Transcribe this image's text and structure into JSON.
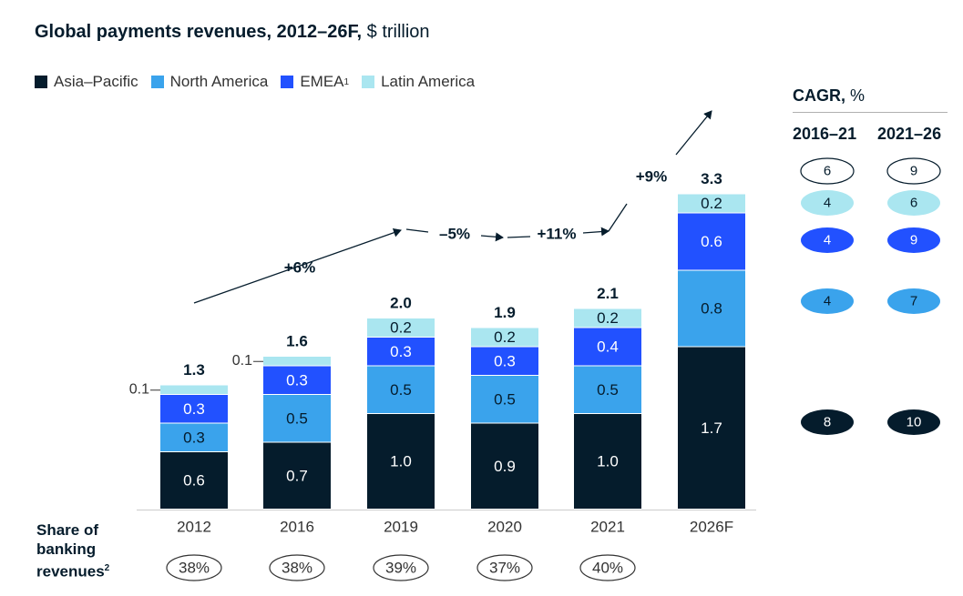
{
  "chart_data": {
    "type": "bar",
    "title": "Global payments revenues, 2012–26F,",
    "unit": "$ trillion",
    "categories": [
      "2012",
      "2016",
      "2019",
      "2020",
      "2021",
      "2026F"
    ],
    "series": [
      {
        "name": "Asia–Pacific",
        "color": "#051c2c",
        "values": [
          0.6,
          0.7,
          1.0,
          0.9,
          1.0,
          1.7
        ]
      },
      {
        "name": "North America",
        "color": "#3aa3ec",
        "values": [
          0.3,
          0.5,
          0.5,
          0.5,
          0.5,
          0.8
        ]
      },
      {
        "name": "EMEA",
        "color": "#2251ff",
        "values": [
          0.3,
          0.3,
          0.3,
          0.3,
          0.4,
          0.6
        ]
      },
      {
        "name": "Latin America",
        "color": "#aae6f0",
        "values": [
          0.1,
          0.1,
          0.2,
          0.2,
          0.2,
          0.2
        ]
      }
    ],
    "data_labels": [
      [
        "0.6",
        "0.3",
        "0.3",
        "0.1"
      ],
      [
        "0.7",
        "0.5",
        "0.3",
        "0.1"
      ],
      [
        "1.0",
        "0.5",
        "0.3",
        "0.2"
      ],
      [
        "0.9",
        "0.5",
        "0.3",
        "0.2"
      ],
      [
        "1.0",
        "0.5",
        "0.4",
        "0.2"
      ],
      [
        "1.7",
        "0.8",
        "0.6",
        "0.2"
      ]
    ],
    "totals": [
      "1.3",
      "1.6",
      "2.0",
      "1.9",
      "2.1",
      "3.3"
    ],
    "growth_labels": [
      "+6%",
      "–5%",
      "+11%",
      "+9%"
    ],
    "legend_footnote": "1",
    "share_label": "Share of banking revenues",
    "share_footnote": "2",
    "share_values": [
      "38%",
      "38%",
      "39%",
      "37%",
      "40%"
    ],
    "cagr": {
      "title": "CAGR,",
      "unit": "%",
      "columns": [
        "2016–21",
        "2021–26"
      ],
      "rows": [
        {
          "series": "Total",
          "values": [
            "6",
            "9"
          ]
        },
        {
          "series": "Latin America",
          "values": [
            "4",
            "6"
          ]
        },
        {
          "series": "EMEA",
          "values": [
            "4",
            "9"
          ]
        },
        {
          "series": "North America",
          "values": [
            "4",
            "7"
          ]
        },
        {
          "series": "Asia–Pacific",
          "values": [
            "8",
            "10"
          ]
        }
      ]
    },
    "legend_position": "top-left",
    "grid": false
  }
}
